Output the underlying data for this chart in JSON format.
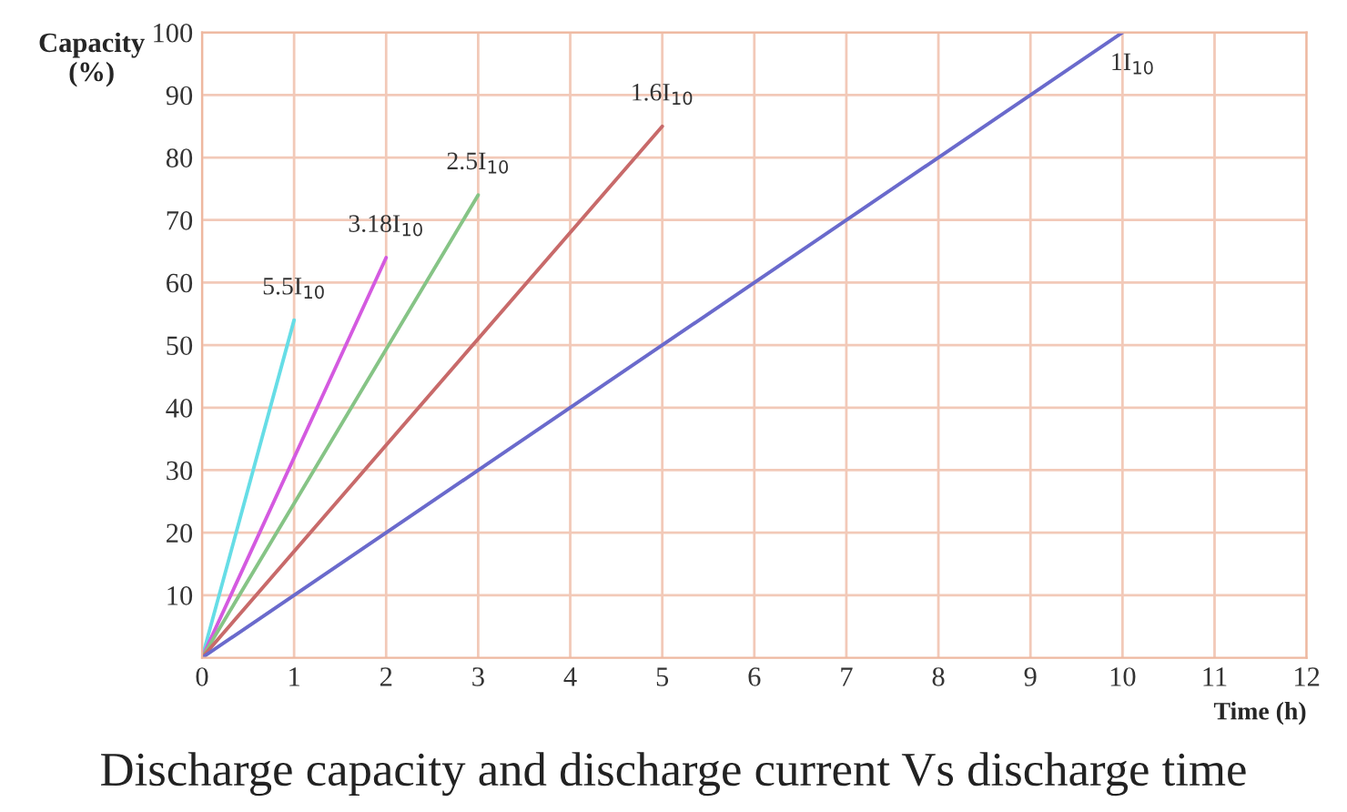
{
  "chart_data": {
    "type": "line",
    "title": "Discharge capacity and discharge current Vs discharge time",
    "xlabel": "Time (h)",
    "ylabel": "Capacity\n(%)",
    "xlim": [
      0,
      12
    ],
    "xticks": [
      0,
      1,
      2,
      3,
      4,
      5,
      6,
      7,
      8,
      9,
      10,
      11,
      12
    ],
    "ylim": [
      0,
      100
    ],
    "yticks": [
      10,
      20,
      30,
      40,
      50,
      60,
      70,
      80,
      90,
      100
    ],
    "grid": true,
    "legend": false,
    "marker": "none",
    "line_style": "solid",
    "series": [
      {
        "name": "5.5I$_{10}$",
        "color": "#66dde6",
        "x": [
          0,
          1
        ],
        "values": [
          0,
          54
        ]
      },
      {
        "name": "3.18I$_{10}$",
        "color": "#d45ae0",
        "x": [
          0,
          2
        ],
        "values": [
          0,
          64
        ]
      },
      {
        "name": "2.5I$_{10}$",
        "color": "#86c486",
        "x": [
          0,
          3
        ],
        "values": [
          0,
          74
        ]
      },
      {
        "name": "1.6I$_{10}$",
        "color": "#c86a6a",
        "x": [
          0,
          5
        ],
        "values": [
          0,
          85
        ]
      },
      {
        "name": "1I$_{10}$",
        "color": "#6a6acc",
        "x": [
          0,
          10
        ],
        "values": [
          0,
          100
        ]
      }
    ]
  }
}
